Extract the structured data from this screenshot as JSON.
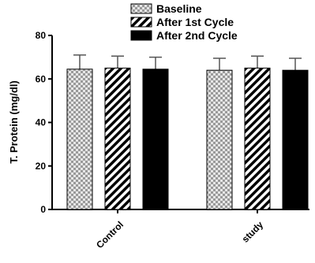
{
  "chart_data": {
    "type": "bar",
    "title": "",
    "xlabel": "",
    "ylabel": "T. Protein (mg/dl)",
    "ylim": [
      0,
      80
    ],
    "yticks": [
      0,
      20,
      40,
      60,
      80
    ],
    "grid": false,
    "legend_position": "top",
    "categories": [
      "Control",
      "study"
    ],
    "series": [
      {
        "name": "Baseline",
        "pattern": "checker",
        "values": [
          64.5,
          64
        ],
        "errors": [
          6.5,
          5.5
        ]
      },
      {
        "name": "After 1st Cycle",
        "pattern": "diagonal",
        "values": [
          65,
          65
        ],
        "errors": [
          5.5,
          5.5
        ]
      },
      {
        "name": "After 2nd Cycle",
        "pattern": "solid",
        "values": [
          64.5,
          64
        ],
        "errors": [
          5.5,
          5.5
        ]
      }
    ]
  }
}
